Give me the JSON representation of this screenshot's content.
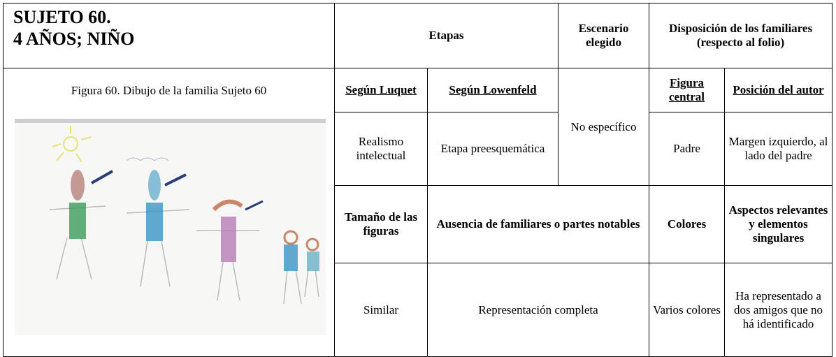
{
  "header": {
    "subject": "SUJETO 60.",
    "age": "4 AÑOS; NIÑO"
  },
  "figure": {
    "caption": "Figura 60. Dibujo de la familia Sujeto 60"
  },
  "table": {
    "rows": [
      [
        "Etapas",
        "Escenario elegido",
        "Disposición de los familiares (respecto al folio)"
      ],
      [
        "Según Luquet",
        "Según Lowenfeld",
        "No específico",
        "Figura central",
        "Posición del autor"
      ],
      [
        "Realismo intelectual",
        "Etapa preesquemática",
        "Padre",
        "Margen izquierdo, al lado del padre"
      ],
      [
        "Tamaño de las figuras",
        "Ausencia de familiares o partes notables",
        "Colores",
        "Aspectos relevantes y elementos singulares"
      ],
      [
        "Similar",
        "Representación completa",
        "Varios colores",
        "Ha representado a dos amigos que no há identificado"
      ]
    ]
  }
}
